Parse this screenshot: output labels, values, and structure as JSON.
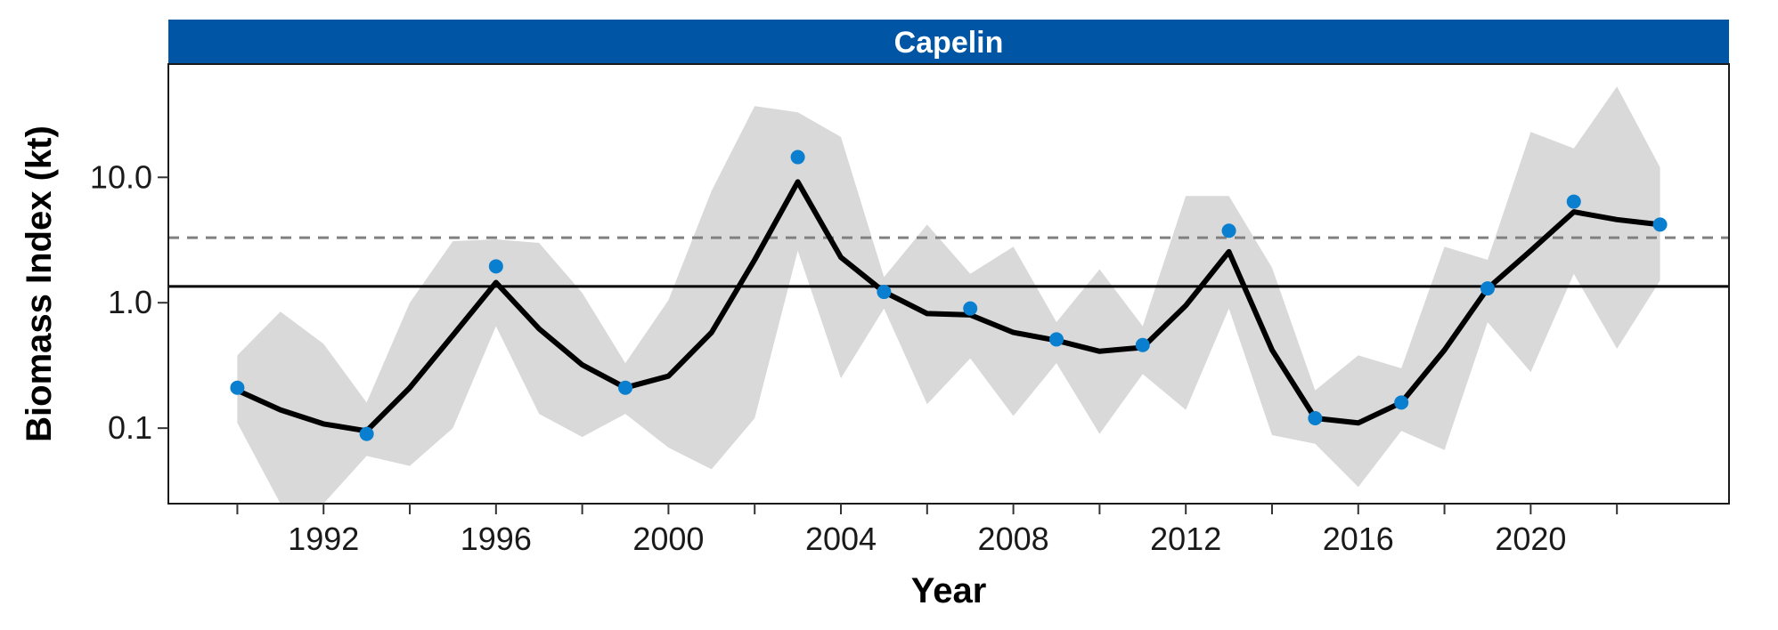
{
  "chart_data": {
    "type": "line",
    "panel_title": "Capelin",
    "xlabel": "Year",
    "ylabel": "Biomass Index (kt)",
    "y_scale": "log10",
    "ylim": [
      0.025,
      80
    ],
    "xlim": [
      1988.4,
      2024.6
    ],
    "x_ticks": [
      1992,
      1996,
      2000,
      2004,
      2008,
      2012,
      2016,
      2020
    ],
    "x_minor_ticks": [
      1990,
      1994,
      1998,
      2002,
      2006,
      2010,
      2014,
      2018,
      2022
    ],
    "y_ticks": [
      0.1,
      1.0,
      10.0
    ],
    "y_tick_labels": [
      "0.1",
      "1.0",
      "10.0"
    ],
    "reference_lines": [
      {
        "style": "solid",
        "color": "#000000",
        "y": 1.35
      },
      {
        "style": "dashed",
        "color": "#808080",
        "y": 3.3
      }
    ],
    "ribbon": {
      "color": "#d9d9d9",
      "x": [
        1990,
        1991,
        1992,
        1993,
        1994,
        1995,
        1996,
        1997,
        1998,
        1999,
        2000,
        2001,
        2002,
        2003,
        2004,
        2005,
        2006,
        2007,
        2008,
        2009,
        2010,
        2011,
        2012,
        2013,
        2014,
        2015,
        2016,
        2017,
        2018,
        2019,
        2020,
        2021,
        2022,
        2023
      ],
      "lower": [
        0.11,
        0.025,
        0.025,
        0.06,
        0.05,
        0.1,
        0.65,
        0.13,
        0.085,
        0.13,
        0.07,
        0.047,
        0.12,
        2.6,
        0.25,
        0.9,
        0.155,
        0.36,
        0.125,
        0.33,
        0.09,
        0.27,
        0.14,
        0.9,
        0.088,
        0.075,
        0.034,
        0.095,
        0.067,
        0.7,
        0.28,
        1.7,
        0.43,
        1.5
      ],
      "upper": [
        0.38,
        0.85,
        0.47,
        0.16,
        1.0,
        3.1,
        3.2,
        3.0,
        1.2,
        0.33,
        1.05,
        7.8,
        37,
        33,
        21,
        1.6,
        4.2,
        1.7,
        2.8,
        0.7,
        1.85,
        0.65,
        7.1,
        7.1,
        1.9,
        0.2,
        0.38,
        0.3,
        2.8,
        2.2,
        23,
        17,
        53,
        12
      ]
    },
    "series": [
      {
        "type": "line",
        "color": "#000000",
        "x": [
          1990,
          1991,
          1992,
          1993,
          1994,
          1995,
          1996,
          1997,
          1998,
          1999,
          2000,
          2001,
          2002,
          2003,
          2004,
          2005,
          2006,
          2007,
          2008,
          2009,
          2010,
          2011,
          2012,
          2013,
          2014,
          2015,
          2016,
          2017,
          2018,
          2019,
          2020,
          2021,
          2022,
          2023
        ],
        "y": [
          0.2,
          0.14,
          0.108,
          0.095,
          0.21,
          0.55,
          1.45,
          0.62,
          0.32,
          0.21,
          0.26,
          0.58,
          2.2,
          9.2,
          2.3,
          1.22,
          0.82,
          0.8,
          0.58,
          0.5,
          0.41,
          0.44,
          0.95,
          2.55,
          0.42,
          0.12,
          0.11,
          0.16,
          0.42,
          1.3,
          2.6,
          5.3,
          4.6,
          4.2
        ]
      },
      {
        "type": "scatter",
        "color": "#0a7fcf",
        "x": [
          1990,
          1993,
          1996,
          1999,
          2003,
          2005,
          2007,
          2009,
          2011,
          2013,
          2015,
          2017,
          2019,
          2021,
          2023
        ],
        "y": [
          0.21,
          0.09,
          1.95,
          0.21,
          14.5,
          1.22,
          0.9,
          0.51,
          0.46,
          3.75,
          0.12,
          0.16,
          1.3,
          6.4,
          4.2
        ]
      }
    ],
    "colors": {
      "strip_fill": "#0056a4",
      "panel_border": "#1a1a1a"
    }
  }
}
